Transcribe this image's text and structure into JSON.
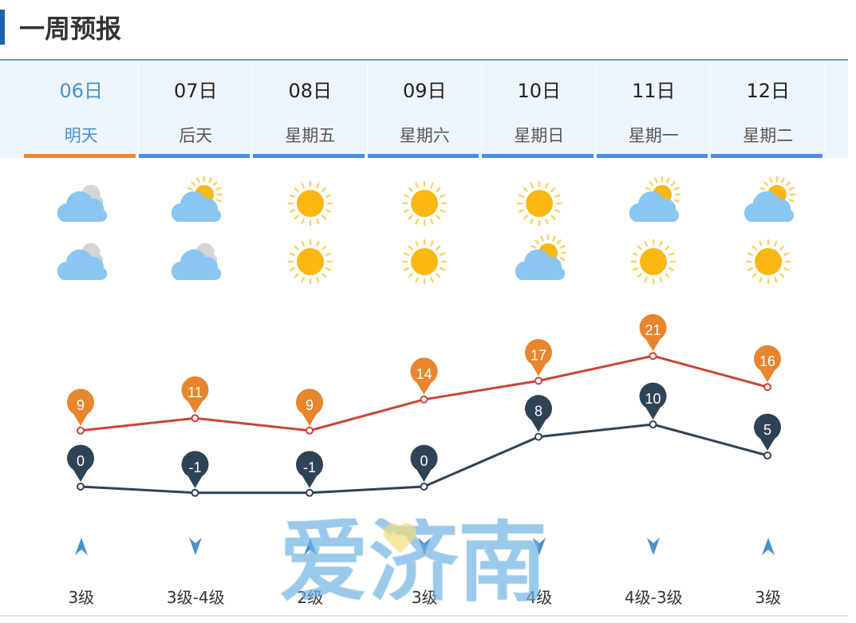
{
  "title": "一周预报",
  "days": [
    {
      "date": "06日",
      "weekday": "明天",
      "day_icon": "cloudy",
      "night_icon": "cloudy",
      "high": 9,
      "low": 0,
      "wind_dir": "up",
      "wind": "3级"
    },
    {
      "date": "07日",
      "weekday": "后天",
      "day_icon": "partly-cloudy",
      "night_icon": "cloudy",
      "high": 11,
      "low": -1,
      "wind_dir": "down",
      "wind": "3级-4级"
    },
    {
      "date": "08日",
      "weekday": "星期五",
      "day_icon": "sunny",
      "night_icon": "sunny",
      "high": 9,
      "low": -1,
      "wind_dir": "up",
      "wind": "2级"
    },
    {
      "date": "09日",
      "weekday": "星期六",
      "day_icon": "sunny",
      "night_icon": "sunny",
      "high": 14,
      "low": 0,
      "wind_dir": "down",
      "wind": "3级"
    },
    {
      "date": "10日",
      "weekday": "星期日",
      "day_icon": "sunny",
      "night_icon": "partly-cloudy",
      "high": 17,
      "low": 8,
      "wind_dir": "down",
      "wind": "4级"
    },
    {
      "date": "11日",
      "weekday": "星期一",
      "day_icon": "partly-cloudy",
      "night_icon": "sunny",
      "high": 21,
      "low": 10,
      "wind_dir": "down",
      "wind": "4级-3级"
    },
    {
      "date": "12日",
      "weekday": "星期二",
      "day_icon": "partly-cloudy",
      "night_icon": "sunny",
      "high": 16,
      "low": 5,
      "wind_dir": "up",
      "wind": "3级"
    }
  ],
  "colors": {
    "high": "#e8862e",
    "high_line": "#c8453a",
    "low": "#2f4356",
    "accent": "#4a8ee0",
    "active": "#e8863a"
  },
  "watermark": "爱济南"
}
